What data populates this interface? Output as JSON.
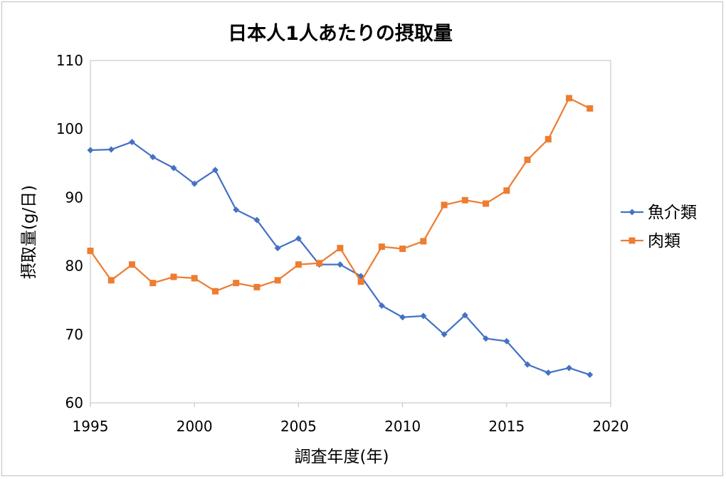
{
  "chart_data": {
    "type": "line",
    "title": "日本人1人あたりの摂取量",
    "xlabel": "調査年度(年)",
    "ylabel": "摂取量(g/日)",
    "xlim": [
      1995,
      2020
    ],
    "ylim": [
      60,
      110
    ],
    "x_ticks": [
      "1995",
      "2000",
      "2005",
      "2010",
      "2015",
      "2020"
    ],
    "y_ticks": [
      "60",
      "70",
      "80",
      "90",
      "100",
      "110"
    ],
    "grid": false,
    "legend_position": "right",
    "x": [
      1995,
      1996,
      1997,
      1998,
      1999,
      2000,
      2001,
      2002,
      2003,
      2004,
      2005,
      2006,
      2007,
      2008,
      2009,
      2010,
      2011,
      2012,
      2013,
      2014,
      2015,
      2016,
      2017,
      2018,
      2019
    ],
    "series": [
      {
        "name": "魚介類",
        "color": "#4472c4",
        "marker": "diamond",
        "values": [
          96.9,
          97.0,
          98.1,
          95.9,
          94.3,
          92.0,
          94.0,
          88.2,
          86.7,
          82.6,
          84.0,
          80.2,
          80.2,
          78.5,
          74.2,
          72.5,
          72.7,
          70.0,
          72.8,
          69.4,
          69.0,
          65.6,
          64.4,
          65.1,
          64.1
        ]
      },
      {
        "name": "肉類",
        "color": "#ed7d31",
        "marker": "square",
        "values": [
          82.2,
          77.9,
          80.2,
          77.5,
          78.4,
          78.2,
          76.3,
          77.5,
          76.9,
          77.9,
          80.2,
          80.4,
          82.6,
          77.7,
          82.8,
          82.5,
          83.6,
          88.9,
          89.6,
          89.1,
          91.0,
          95.5,
          98.5,
          104.5,
          103.0
        ]
      }
    ]
  }
}
